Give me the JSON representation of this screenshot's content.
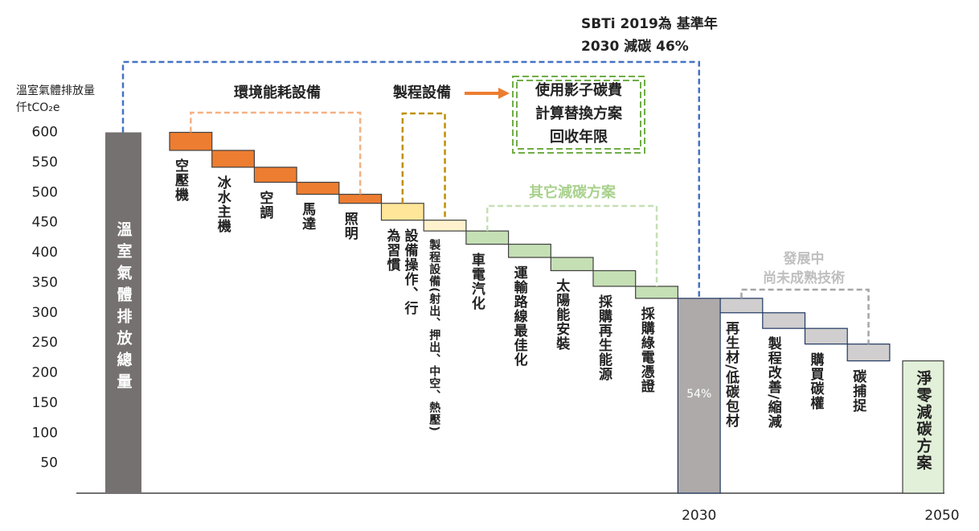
{
  "chart_data": {
    "type": "waterfall",
    "y_label": [
      "溫室氣體排放量",
      "仟tCO₂e"
    ],
    "ylim": [
      0,
      600
    ],
    "yticks": [
      50,
      100,
      150,
      200,
      250,
      300,
      350,
      400,
      450,
      500,
      550,
      600
    ],
    "start": {
      "label": "溫室氣體排放總量",
      "value": 600,
      "color": "#767171"
    },
    "before": {
      "categories": [
        "空壓機",
        "冰水主機",
        "空調",
        "馬達",
        "照明",
        "設備操作、行為習慣",
        "製程設備(射出、押出、中空、熱壓)",
        "車電汽化",
        "運輸路線最佳化",
        "太陽能安裝",
        "採購再生能源",
        "採購綠電憑證"
      ],
      "values": [
        30,
        28,
        25,
        20,
        15,
        28,
        18,
        22,
        22,
        22,
        26,
        20
      ],
      "colors": [
        "#ed7d31",
        "#ed7d31",
        "#ed7d31",
        "#ed7d31",
        "#ed7d31",
        "#ffe699",
        "#fff2cc",
        "#c5e0b4",
        "#c5e0b4",
        "#c5e0b4",
        "#c5e0b4",
        "#c5e0b4"
      ]
    },
    "milestone": {
      "x_label": "2030",
      "value": 324,
      "color": "#aeaaaa"
    },
    "after": {
      "categories": [
        "再生材/低碳包材",
        "製程改善/縮減",
        "購買碳權",
        "碳捕捉"
      ],
      "values": [
        24,
        26,
        26,
        28
      ],
      "colors": [
        "#d0cece",
        "#d0cece",
        "#d0cece",
        "#d0cece"
      ]
    },
    "end": {
      "x_label": "2050",
      "label": "淨零減碳方案",
      "value": 220,
      "color": "#e2f0d9"
    },
    "annotations": {
      "target": [
        "SBTi 2019為 基準年",
        "2030 減碳 46%"
      ],
      "milestone_share": "54%",
      "energy_group": "環境能耗設備",
      "process_group": "製程設備",
      "shadow_box": [
        "使用影子碳費",
        "計算替換方案",
        "回收年限"
      ],
      "other_group": "其它減碳方案",
      "developing_group": [
        "發展中",
        "尚未成熟技術"
      ]
    }
  }
}
